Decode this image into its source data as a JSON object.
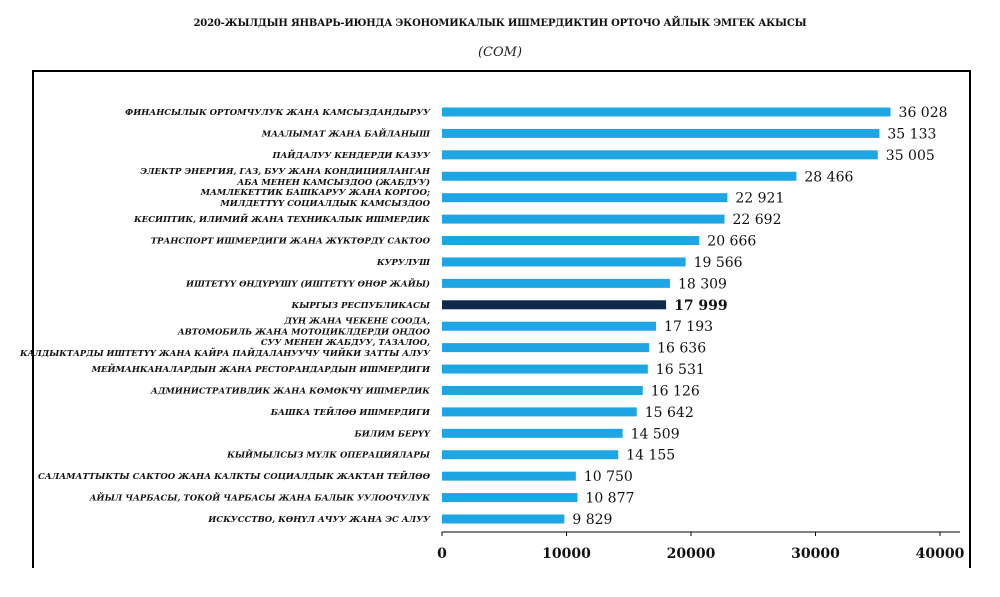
{
  "chart_data": {
    "type": "bar",
    "orientation": "horizontal",
    "title": "2020-ЖЫЛДЫН ЯНВАРЬ-ИЮНДА ЭКОНОМИКАЛЫК ИШМЕРДИКТИН ОРТОЧО АЙЛЫК ЭМГЕК АКЫСЫ",
    "subtitle": "(СОМ)",
    "categories": [
      [
        "ФИНАНСЫЛЫК ОРТОМЧУЛУК ЖАНА КАМСЫЗДАНДЫРУУ"
      ],
      [
        "МААЛЫМАТ ЖАНА БАЙЛАНЫШ"
      ],
      [
        "ПАЙДАЛУУ КЕНДЕРДИ КАЗУУ"
      ],
      [
        "ЭЛЕКТР ЭНЕРГИЯ, ГАЗ, БУУ ЖАНА КОНДИЦИЯЛАНГАН",
        "АБА МЕНЕН КАМСЫЗДОО (ЖАБДУУ)"
      ],
      [
        "МАМЛЕКЕТТИК БАШКАРУУ ЖАНА КОРГОО;",
        "МИЛДЕТТҮҮ СОЦИАЛДЫК КАМСЫЗДОО"
      ],
      [
        "КЕСИПТИК, ИЛИМИЙ ЖАНА ТЕХНИКАЛЫК ИШМЕРДИК"
      ],
      [
        "ТРАНСПОРТ ИШМЕРДИГИ ЖАНА ЖҮКТӨРДҮ САКТОО"
      ],
      [
        "КУРУЛУШ"
      ],
      [
        "ИШТЕТҮҮ ӨНДҮРҮШҮ (ИШТЕТҮҮ ӨНӨР ЖАЙЫ)"
      ],
      [
        "КЫРГЫЗ РЕСПУБЛИКАСЫ"
      ],
      [
        "ДҮҢ ЖАНА ЧЕКЕНЕ СООДА,",
        "АВТОМОБИЛЬ ЖАНА МОТОЦИКЛДЕРДИ ОҢДОО"
      ],
      [
        "СУУ МЕНЕН ЖАБДУУ, ТАЗАЛОО,",
        "КАЛДЫКТАРДЫ ИШТЕТҮҮ ЖАНА КАЙРА ПАЙДАЛАНУУЧУ ЧИЙКИ ЗАТТЫ АЛУУ"
      ],
      [
        "МЕЙМАНКАНАЛАРДЫН ЖАНА РЕСТОРАНДАРДЫН ИШМЕРДИГИ"
      ],
      [
        "АДМИНИСТРАТИВДИК ЖАНА КӨМӨКЧҮ ИШМЕРДИК"
      ],
      [
        "БАШКА ТЕЙЛӨӨ ИШМЕРДИГИ"
      ],
      [
        "БИЛИМ БЕРҮҮ"
      ],
      [
        "КЫЙМЫЛСЫЗ МҮЛК ОПЕРАЦИЯЛАРЫ"
      ],
      [
        "САЛАМАТТЫКТЫ САКТОО ЖАНА КАЛКТЫ СОЦИАЛДЫК ЖАКТАН ТЕЙЛӨӨ"
      ],
      [
        "АЙЫЛ ЧАРБАСЫ, ТОКОЙ ЧАРБАСЫ ЖАНА БАЛЫК УУЛООЧУЛУК"
      ],
      [
        "ИСКУССТВО, КӨҢҮЛ АЧУУ ЖАНА ЭС АЛУУ"
      ]
    ],
    "values": [
      36028,
      35133,
      35005,
      28466,
      22921,
      22692,
      20666,
      19566,
      18309,
      17999,
      17193,
      16636,
      16531,
      16126,
      15642,
      14509,
      14155,
      10750,
      10877,
      9829
    ],
    "value_labels": [
      "36 028",
      "35 133",
      "35 005",
      "28 466",
      "22 921",
      "22 692",
      "20 666",
      "19 566",
      "18 309",
      "17 999",
      "17 193",
      "16 636",
      "16 531",
      "16 126",
      "15 642",
      "14 509",
      "14 155",
      "10 750",
      "10 877",
      "9 829"
    ],
    "highlight_index": 9,
    "xlim": [
      0,
      40000
    ],
    "xticks": [
      0,
      10000,
      20000,
      30000,
      40000
    ],
    "xtick_labels": [
      "0",
      "10000",
      "20000",
      "30000",
      "40000"
    ],
    "grid": false,
    "legend": "none",
    "colors": {
      "bar": "#1ea5e4",
      "highlight": "#0e2a4a",
      "text": "#111111"
    }
  }
}
